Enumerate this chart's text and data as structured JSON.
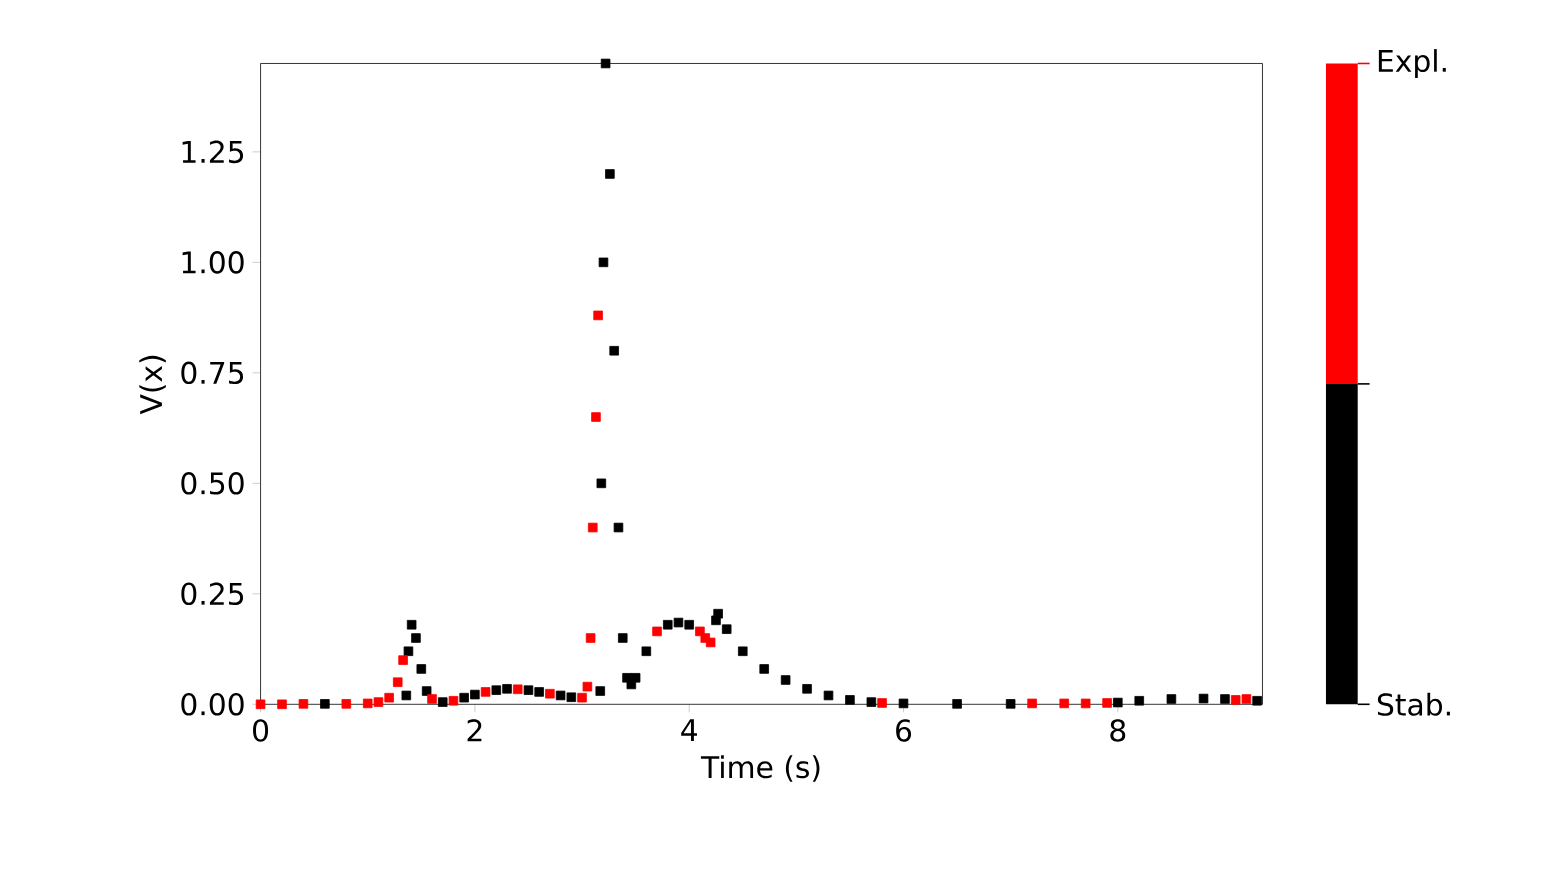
{
  "chart_data": {
    "type": "scatter",
    "xlabel": "Time (s)",
    "ylabel": "V(x)",
    "marker": "square",
    "legend": "right",
    "xlim": [
      0,
      9.35
    ],
    "ylim": [
      0,
      1.45
    ],
    "xticks": [
      0,
      2,
      4,
      6,
      8
    ],
    "yticks": [
      {
        "value": 0,
        "label": "0.00"
      },
      {
        "value": 0.25,
        "label": "0.25"
      },
      {
        "value": 0.5,
        "label": "0.50"
      },
      {
        "value": 0.75,
        "label": "0.75"
      },
      {
        "value": 1,
        "label": "1.00"
      },
      {
        "value": 1.25,
        "label": "1.25"
      }
    ],
    "series": [
      {
        "name": "Stab.",
        "color": "#000000",
        "x": [
          0.6,
          1.36,
          1.38,
          1.41,
          1.45,
          1.5,
          1.55,
          1.7,
          1.9,
          2.0,
          2.2,
          2.3,
          2.5,
          2.6,
          2.8,
          2.9,
          3.17,
          3.18,
          3.2,
          3.22,
          3.26,
          3.3,
          3.34,
          3.38,
          3.42,
          3.46,
          3.5,
          3.6,
          3.8,
          3.9,
          4.0,
          4.25,
          4.27,
          4.35,
          4.5,
          4.7,
          4.9,
          5.1,
          5.3,
          5.5,
          5.7,
          6.0,
          6.5,
          7.0,
          8.0,
          8.2,
          8.5,
          8.8,
          9.0,
          9.3
        ],
        "values": [
          0.001,
          0.02,
          0.12,
          0.18,
          0.15,
          0.08,
          0.03,
          0.005,
          0.015,
          0.022,
          0.032,
          0.035,
          0.032,
          0.028,
          0.02,
          0.016,
          0.03,
          0.5,
          1.0,
          1.45,
          1.2,
          0.8,
          0.4,
          0.15,
          0.06,
          0.045,
          0.06,
          0.12,
          0.18,
          0.185,
          0.18,
          0.19,
          0.205,
          0.17,
          0.12,
          0.08,
          0.055,
          0.035,
          0.02,
          0.01,
          0.005,
          0.002,
          0.001,
          0.001,
          0.004,
          0.008,
          0.012,
          0.013,
          0.012,
          0.008
        ]
      },
      {
        "name": "Expl.",
        "color": "#ff0000",
        "x": [
          0.0,
          0.2,
          0.4,
          0.8,
          1.0,
          1.1,
          1.2,
          1.28,
          1.33,
          1.6,
          1.8,
          2.1,
          2.4,
          2.7,
          3.0,
          3.05,
          3.08,
          3.1,
          3.13,
          3.15,
          3.7,
          4.1,
          4.15,
          4.2,
          5.8,
          7.2,
          7.5,
          7.7,
          7.9,
          9.1,
          9.2
        ],
        "values": [
          0.0,
          0.0,
          0.001,
          0.001,
          0.002,
          0.005,
          0.015,
          0.05,
          0.1,
          0.012,
          0.008,
          0.028,
          0.034,
          0.024,
          0.015,
          0.04,
          0.15,
          0.4,
          0.65,
          0.88,
          0.165,
          0.165,
          0.15,
          0.14,
          0.003,
          0.002,
          0.002,
          0.002,
          0.003,
          0.01,
          0.012
        ]
      }
    ]
  }
}
